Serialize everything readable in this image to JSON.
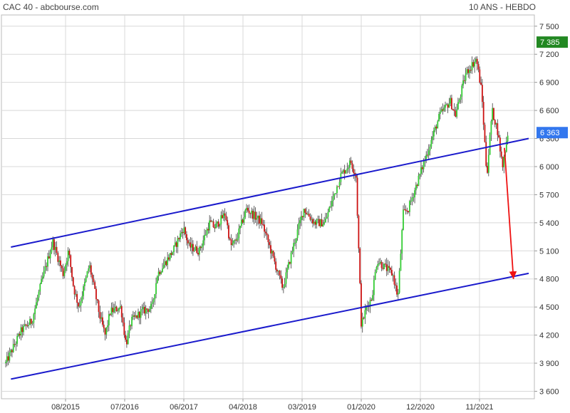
{
  "header": {
    "title": "CAC 40 - abcbourse.com",
    "period": "10 ANS - HEBDO"
  },
  "colors": {
    "up": "#33cc33",
    "down": "#cc1111",
    "channel": "#1a1acc",
    "arrow": "#ee1111",
    "grid": "#d8d8d8",
    "badge_high": "#228822",
    "badge_current": "#3377ee"
  },
  "chart_data": {
    "type": "candlestick",
    "x_tick_labels": [
      "08/2015",
      "07/2016",
      "06/2017",
      "04/2018",
      "03/2019",
      "01/2020",
      "12/2020",
      "11/2021"
    ],
    "y_ticks": [
      3600,
      3900,
      4200,
      4500,
      4800,
      5100,
      5400,
      5700,
      6000,
      6300,
      6600,
      6900,
      7200,
      7500
    ],
    "y_tick_labels": [
      "3 600",
      "3 900",
      "4 200",
      "4 500",
      "4 800",
      "5 100",
      "5 400",
      "5 700",
      "6 000",
      "6 300",
      "6 600",
      "6 900",
      "7 200",
      "7 500"
    ],
    "ylim": [
      3520,
      7620
    ],
    "x_range": [
      "2014-07",
      "2022-04"
    ],
    "price_path": [
      [
        "2014-07",
        3900
      ],
      [
        "2014-10",
        4250
      ],
      [
        "2014-12",
        4350
      ],
      [
        "2015-02",
        4800
      ],
      [
        "2015-04",
        5200
      ],
      [
        "2015-06",
        4850
      ],
      [
        "2015-07",
        5100
      ],
      [
        "2015-08",
        4700
      ],
      [
        "2015-09",
        4500
      ],
      [
        "2015-11",
        4950
      ],
      [
        "2016-01",
        4400
      ],
      [
        "2016-02",
        4200
      ],
      [
        "2016-03",
        4450
      ],
      [
        "2016-05",
        4500
      ],
      [
        "2016-06",
        4100
      ],
      [
        "2016-07",
        4350
      ],
      [
        "2016-09",
        4450
      ],
      [
        "2016-11",
        4500
      ],
      [
        "2016-12",
        4850
      ],
      [
        "2017-03",
        5100
      ],
      [
        "2017-05",
        5350
      ],
      [
        "2017-06",
        5150
      ],
      [
        "2017-08",
        5100
      ],
      [
        "2017-10",
        5400
      ],
      [
        "2017-11",
        5350
      ],
      [
        "2018-01",
        5500
      ],
      [
        "2018-02",
        5150
      ],
      [
        "2018-03",
        5200
      ],
      [
        "2018-05",
        5550
      ],
      [
        "2018-07",
        5450
      ],
      [
        "2018-08",
        5400
      ],
      [
        "2018-10",
        5050
      ],
      [
        "2018-12",
        4700
      ],
      [
        "2019-02",
        5150
      ],
      [
        "2019-04",
        5550
      ],
      [
        "2019-06",
        5400
      ],
      [
        "2019-08",
        5400
      ],
      [
        "2019-11",
        5900
      ],
      [
        "2020-01",
        6050
      ],
      [
        "2020-02",
        5900
      ],
      [
        "2020-03",
        4300
      ],
      [
        "2020-04",
        4500
      ],
      [
        "2020-05",
        4600
      ],
      [
        "2020-06",
        5000
      ],
      [
        "2020-09",
        4850
      ],
      [
        "2020-10",
        4600
      ],
      [
        "2020-11",
        5500
      ],
      [
        "2020-12",
        5550
      ],
      [
        "2021-03",
        6050
      ],
      [
        "2021-06",
        6550
      ],
      [
        "2021-08",
        6700
      ],
      [
        "2021-09",
        6550
      ],
      [
        "2021-11",
        7000
      ],
      [
        "2022-01",
        7150
      ],
      [
        "2022-02",
        6800
      ],
      [
        "2022-03",
        5900
      ],
      [
        "2022-04",
        6600
      ],
      [
        "2022-05",
        6400
      ],
      [
        "2022-06",
        6000
      ],
      [
        "2022-07",
        6363
      ]
    ],
    "candle_count": 395,
    "annotations": {
      "high_label": "7 385",
      "high_value": 7385,
      "current_label": "6 363",
      "current_value": 6363
    },
    "trendlines": [
      {
        "name": "upper-channel",
        "from": [
          "2014-08",
          5140
        ],
        "to": [
          "2022-11",
          6300
        ]
      },
      {
        "name": "lower-channel",
        "from": [
          "2014-08",
          3730
        ],
        "to": [
          "2022-11",
          4860
        ]
      }
    ],
    "arrow": {
      "from": [
        "2022-08",
        6200
      ],
      "to": [
        "2022-10",
        4860
      ]
    },
    "grid": true
  }
}
